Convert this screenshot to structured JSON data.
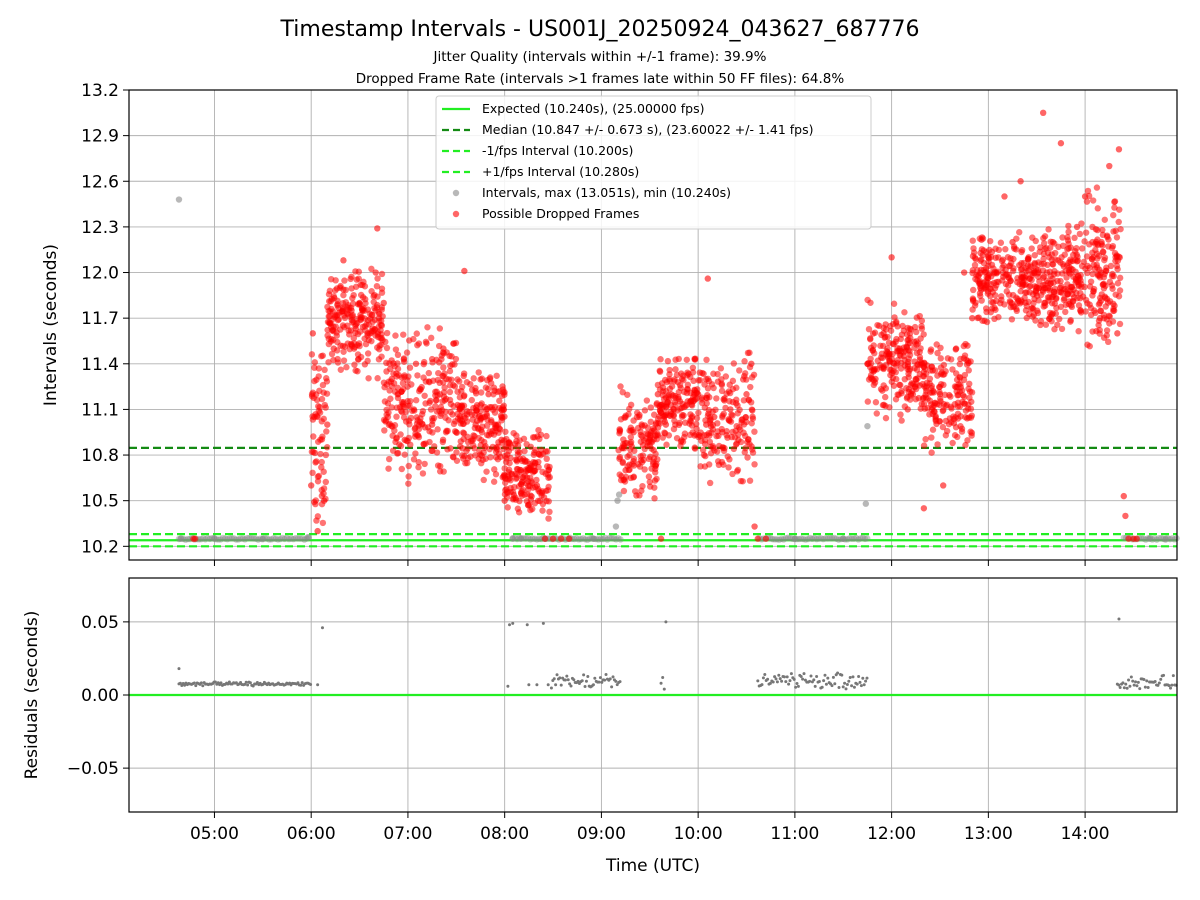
{
  "chart_data": [
    {
      "type": "scatter",
      "title": "Timestamp Intervals - US001J_20250924_043627_687776",
      "subtitles": [
        "Jitter Quality (intervals within +/-1 frame): 39.9%",
        "Dropped Frame Rate (intervals >1 frames late within 50 FF files): 64.8%"
      ],
      "ylabel": "Intervals (seconds)",
      "xlim": [
        "04:07",
        "14:57"
      ],
      "ylim": [
        10.11,
        13.2
      ],
      "x_ticks": [
        "05:00",
        "06:00",
        "07:00",
        "08:00",
        "09:00",
        "10:00",
        "11:00",
        "12:00",
        "13:00",
        "14:00"
      ],
      "y_ticks": [
        "10.2",
        "10.5",
        "10.8",
        "11.1",
        "11.4",
        "11.7",
        "12.0",
        "12.3",
        "12.6",
        "12.9",
        "13.2"
      ],
      "grid": true,
      "legend_position": "top-center",
      "reference_lines": [
        {
          "name": "Expected (10.240s), (25.00000 fps)",
          "y": 10.24,
          "style": "solid",
          "color": "#22ee22"
        },
        {
          "name": "Median (10.847 +/- 0.673 s), (23.60022 +/- 1.41 fps)",
          "y": 10.847,
          "style": "dashed",
          "color": "#138a13"
        },
        {
          "name": "-1/fps Interval (10.200s)",
          "y": 10.2,
          "style": "dashed",
          "color": "#22ee22"
        },
        {
          "name": "+1/fps Interval (10.280s)",
          "y": 10.28,
          "style": "dashed",
          "color": "#22ee22"
        }
      ],
      "series": [
        {
          "name": "Intervals, max (13.051s), min (10.240s)",
          "color": "#888888",
          "points": [
            [
              "04:38",
              12.48
            ],
            [
              "04:39",
              10.25
            ],
            [
              "05:00",
              10.25
            ],
            [
              "05:30",
              10.25
            ],
            [
              "05:58",
              10.26
            ],
            [
              "08:05",
              10.25
            ],
            [
              "08:10",
              10.25
            ],
            [
              "08:25",
              10.25
            ],
            [
              "08:40",
              10.25
            ],
            [
              "08:55",
              10.25
            ],
            [
              "09:09",
              10.33
            ],
            [
              "09:10",
              10.5
            ],
            [
              "09:11",
              10.54
            ],
            [
              "11:00",
              10.25
            ],
            [
              "11:30",
              10.25
            ],
            [
              "11:44",
              10.48
            ],
            [
              "11:45",
              10.99
            ],
            [
              "14:40",
              10.25
            ],
            [
              "14:50",
              10.25
            ]
          ],
          "bands": [
            {
              "x_range": [
                "04:38",
                "05:59"
              ],
              "y": 10.25
            },
            {
              "x_range": [
                "08:05",
                "09:12"
              ],
              "y": 10.25
            },
            {
              "x_range": [
                "10:38",
                "11:45"
              ],
              "y": 10.25
            },
            {
              "x_range": [
                "14:24",
                "14:57"
              ],
              "y": 10.25
            }
          ]
        },
        {
          "name": "Possible Dropped Frames",
          "color": "#ff0000",
          "points": [
            [
              "04:47",
              10.25
            ],
            [
              "04:48",
              10.25
            ],
            [
              "06:00",
              10.6
            ],
            [
              "06:01",
              11.6
            ],
            [
              "06:02",
              11.05
            ],
            [
              "06:04",
              10.3
            ],
            [
              "06:08",
              10.5
            ],
            [
              "06:10",
              11.0
            ],
            [
              "06:14",
              11.5
            ],
            [
              "06:18",
              11.9
            ],
            [
              "06:20",
              12.08
            ],
            [
              "06:25",
              11.75
            ],
            [
              "06:30",
              11.8
            ],
            [
              "06:35",
              11.6
            ],
            [
              "06:40",
              12.0
            ],
            [
              "06:41",
              12.29
            ],
            [
              "06:45",
              11.8
            ],
            [
              "06:50",
              11.3
            ],
            [
              "06:58",
              10.9
            ],
            [
              "07:05",
              11.4
            ],
            [
              "07:15",
              11.0
            ],
            [
              "07:22",
              11.5
            ],
            [
              "07:32",
              11.1
            ],
            [
              "07:35",
              12.01
            ],
            [
              "07:42",
              11.0
            ],
            [
              "07:50",
              11.2
            ],
            [
              "07:58",
              10.9
            ],
            [
              "08:00",
              10.5
            ],
            [
              "08:10",
              10.7
            ],
            [
              "08:20",
              10.6
            ],
            [
              "08:25",
              10.25
            ],
            [
              "08:30",
              10.25
            ],
            [
              "08:35",
              10.25
            ],
            [
              "08:40",
              10.25
            ],
            [
              "09:15",
              10.7
            ],
            [
              "09:20",
              10.95
            ],
            [
              "09:25",
              11.0
            ],
            [
              "09:30",
              10.9
            ],
            [
              "09:35",
              11.2
            ],
            [
              "09:37",
              10.25
            ],
            [
              "09:40",
              11.0
            ],
            [
              "09:45",
              11.1
            ],
            [
              "09:50",
              11.3
            ],
            [
              "09:55",
              11.15
            ],
            [
              "10:00",
              11.2
            ],
            [
              "10:05",
              11.0
            ],
            [
              "10:06",
              11.96
            ],
            [
              "10:10",
              11.05
            ],
            [
              "10:15",
              10.95
            ],
            [
              "10:20",
              11.1
            ],
            [
              "10:25",
              10.9
            ],
            [
              "10:30",
              11.2
            ],
            [
              "10:33",
              11.4
            ],
            [
              "10:35",
              10.33
            ],
            [
              "10:37",
              10.25
            ],
            [
              "10:42",
              10.25
            ],
            [
              "11:45",
              11.4
            ],
            [
              "11:50",
              11.3
            ],
            [
              "11:55",
              11.6
            ],
            [
              "12:00",
              12.1
            ],
            [
              "12:05",
              11.5
            ],
            [
              "12:10",
              11.1
            ],
            [
              "12:15",
              11.3
            ],
            [
              "12:20",
              10.45
            ],
            [
              "12:25",
              11.1
            ],
            [
              "12:30",
              11.2
            ],
            [
              "12:32",
              10.6
            ],
            [
              "12:40",
              11.5
            ],
            [
              "12:45",
              12.0
            ],
            [
              "12:50",
              11.7
            ],
            [
              "12:55",
              11.9
            ],
            [
              "13:00",
              12.1
            ],
            [
              "13:05",
              12.0
            ],
            [
              "13:10",
              12.5
            ],
            [
              "13:15",
              12.2
            ],
            [
              "13:20",
              12.6
            ],
            [
              "13:25",
              12.1
            ],
            [
              "13:30",
              11.9
            ],
            [
              "13:34",
              13.05
            ],
            [
              "13:40",
              12.2
            ],
            [
              "13:45",
              12.85
            ],
            [
              "13:50",
              12.0
            ],
            [
              "13:55",
              12.3
            ],
            [
              "14:00",
              12.5
            ],
            [
              "14:05",
              12.1
            ],
            [
              "14:10",
              12.0
            ],
            [
              "14:15",
              12.7
            ],
            [
              "14:20",
              11.6
            ],
            [
              "14:21",
              12.81
            ],
            [
              "14:24",
              10.53
            ],
            [
              "14:25",
              10.4
            ],
            [
              "14:27",
              10.25
            ],
            [
              "14:30",
              10.25
            ],
            [
              "14:32",
              10.25
            ]
          ]
        }
      ],
      "clusters": [
        {
          "x_range": [
            "06:00",
            "06:10"
          ],
          "y_range": [
            10.3,
            11.6
          ],
          "count": 70
        },
        {
          "x_range": [
            "06:10",
            "06:45"
          ],
          "y_range": [
            11.3,
            12.05
          ],
          "count": 230
        },
        {
          "x_range": [
            "06:45",
            "07:30"
          ],
          "y_range": [
            10.6,
            11.7
          ],
          "count": 260
        },
        {
          "x_range": [
            "07:30",
            "08:00"
          ],
          "y_range": [
            10.6,
            11.4
          ],
          "count": 200
        },
        {
          "x_range": [
            "08:00",
            "08:28"
          ],
          "y_range": [
            10.3,
            11.0
          ],
          "count": 180
        },
        {
          "x_range": [
            "09:10",
            "09:35"
          ],
          "y_range": [
            10.45,
            11.3
          ],
          "count": 140
        },
        {
          "x_range": [
            "09:35",
            "10:00"
          ],
          "y_range": [
            10.8,
            11.5
          ],
          "count": 160
        },
        {
          "x_range": [
            "10:00",
            "10:35"
          ],
          "y_range": [
            10.6,
            11.5
          ],
          "count": 180
        },
        {
          "x_range": [
            "11:45",
            "12:20"
          ],
          "y_range": [
            11.0,
            11.85
          ],
          "count": 220
        },
        {
          "x_range": [
            "12:20",
            "12:50"
          ],
          "y_range": [
            10.8,
            11.6
          ],
          "count": 170
        },
        {
          "x_range": [
            "12:50",
            "13:30"
          ],
          "y_range": [
            11.6,
            12.3
          ],
          "count": 240
        },
        {
          "x_range": [
            "13:30",
            "14:00"
          ],
          "y_range": [
            11.6,
            12.35
          ],
          "count": 200
        },
        {
          "x_range": [
            "14:00",
            "14:22"
          ],
          "y_range": [
            11.4,
            12.6
          ],
          "count": 150
        }
      ]
    },
    {
      "type": "scatter",
      "ylabel": "Residuals (seconds)",
      "xlabel": "Time (UTC)",
      "xlim": [
        "04:07",
        "14:57"
      ],
      "ylim": [
        -0.08,
        0.08
      ],
      "x_ticks": [
        "05:00",
        "06:00",
        "07:00",
        "08:00",
        "09:00",
        "10:00",
        "11:00",
        "12:00",
        "13:00",
        "14:00"
      ],
      "y_ticks": [
        "−0.05",
        "0.00",
        "0.05"
      ],
      "grid": true,
      "zero_line": {
        "y": 0.0,
        "color": "#22ee22"
      },
      "series": [
        {
          "name": "Residuals",
          "color": "#777777",
          "points": [
            [
              "04:38",
              0.018
            ],
            [
              "06:04",
              0.007
            ],
            [
              "06:07",
              0.046
            ],
            [
              "08:02",
              0.006
            ],
            [
              "08:03",
              0.048
            ],
            [
              "08:05",
              0.049
            ],
            [
              "08:14",
              0.048
            ],
            [
              "08:15",
              0.007
            ],
            [
              "08:20",
              0.007
            ],
            [
              "08:24",
              0.049
            ],
            [
              "08:27",
              0.007
            ],
            [
              "09:37",
              0.008
            ],
            [
              "09:38",
              0.012
            ],
            [
              "09:39",
              0.004
            ],
            [
              "09:40",
              0.05
            ],
            [
              "14:21",
              0.052
            ]
          ],
          "bands": [
            {
              "x_range": [
                "04:38",
                "06:00"
              ],
              "y_range": [
                0.006,
                0.009
              ]
            },
            {
              "x_range": [
                "08:29",
                "09:12"
              ],
              "y_range": [
                0.003,
                0.015
              ]
            },
            {
              "x_range": [
                "10:37",
                "11:45"
              ],
              "y_range": [
                0.003,
                0.016
              ]
            },
            {
              "x_range": [
                "14:20",
                "14:57"
              ],
              "y_range": [
                0.003,
                0.014
              ]
            }
          ]
        }
      ]
    }
  ]
}
